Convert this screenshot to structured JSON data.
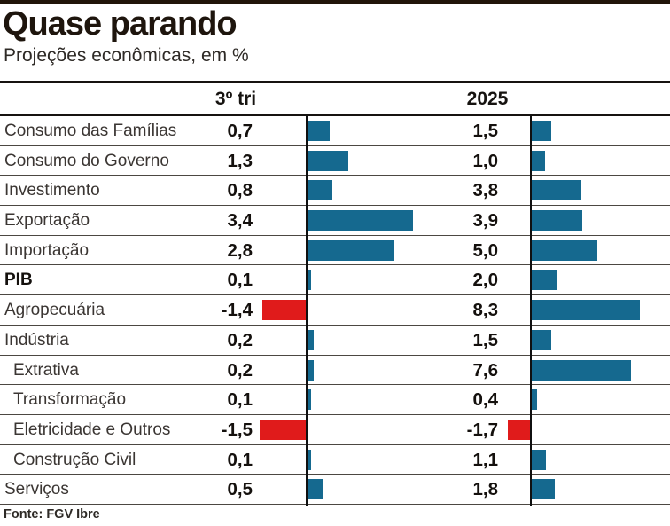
{
  "page": {
    "title": "Quase parando",
    "subtitle": "Projeções econômicas, em %",
    "source": "Fonte: FGV Ibre"
  },
  "columns": {
    "col1": "3º tri",
    "col2": "2025"
  },
  "colors": {
    "positive_bar": "#15698f",
    "negative_bar": "#e01b1b",
    "top_bar": "#211509"
  },
  "rows": [
    {
      "label": "Consumo das Famílias",
      "indent": false,
      "bold": false,
      "q3": "0,7",
      "y2025": "1,5"
    },
    {
      "label": "Consumo do Governo",
      "indent": false,
      "bold": false,
      "q3": "1,3",
      "y2025": "1,0"
    },
    {
      "label": "Investimento",
      "indent": false,
      "bold": false,
      "q3": "0,8",
      "y2025": "3,8"
    },
    {
      "label": "Exportação",
      "indent": false,
      "bold": false,
      "q3": "3,4",
      "y2025": "3,9"
    },
    {
      "label": "Importação",
      "indent": false,
      "bold": false,
      "q3": "2,8",
      "y2025": "5,0"
    },
    {
      "label": "PIB",
      "indent": false,
      "bold": true,
      "q3": "0,1",
      "y2025": "2,0"
    },
    {
      "label": "Agropecuária",
      "indent": false,
      "bold": false,
      "q3": "-1,4",
      "y2025": "8,3"
    },
    {
      "label": "Indústria",
      "indent": false,
      "bold": false,
      "q3": "0,2",
      "y2025": "1,5"
    },
    {
      "label": "Extrativa",
      "indent": true,
      "bold": false,
      "q3": "0,2",
      "y2025": "7,6"
    },
    {
      "label": "Transformação",
      "indent": true,
      "bold": false,
      "q3": "0,1",
      "y2025": "0,4"
    },
    {
      "label": "Eletricidade e Outros",
      "indent": true,
      "bold": false,
      "q3": "-1,5",
      "y2025": "-1,7"
    },
    {
      "label": "Construção Civil",
      "indent": true,
      "bold": false,
      "q3": "0,1",
      "y2025": "1,1"
    },
    {
      "label": "Serviços",
      "indent": false,
      "bold": false,
      "q3": "0,5",
      "y2025": "1,8"
    }
  ],
  "chart_data": {
    "type": "bar",
    "orientation": "horizontal",
    "title": "Quase parando",
    "subtitle": "Projeções econômicas, em %",
    "unit": "%",
    "categories": [
      "Consumo das Famílias",
      "Consumo do Governo",
      "Investimento",
      "Exportação",
      "Importação",
      "PIB",
      "Agropecuária",
      "Indústria",
      "Extrativa",
      "Transformação",
      "Eletricidade e Outros",
      "Construção Civil",
      "Serviços"
    ],
    "series": [
      {
        "name": "3º tri",
        "values": [
          0.7,
          1.3,
          0.8,
          3.4,
          2.8,
          0.1,
          -1.4,
          0.2,
          0.2,
          0.1,
          -1.5,
          0.1,
          0.5
        ]
      },
      {
        "name": "2025",
        "values": [
          1.5,
          1.0,
          3.8,
          3.9,
          5.0,
          2.0,
          8.3,
          1.5,
          7.6,
          0.4,
          -1.7,
          1.1,
          1.8
        ]
      }
    ],
    "positive_color": "#15698f",
    "negative_color": "#e01b1b",
    "value_labels_shown": true,
    "grid": "horizontal-row-separators",
    "legend_position": "column-headers",
    "source": "Fonte: FGV Ibre"
  }
}
